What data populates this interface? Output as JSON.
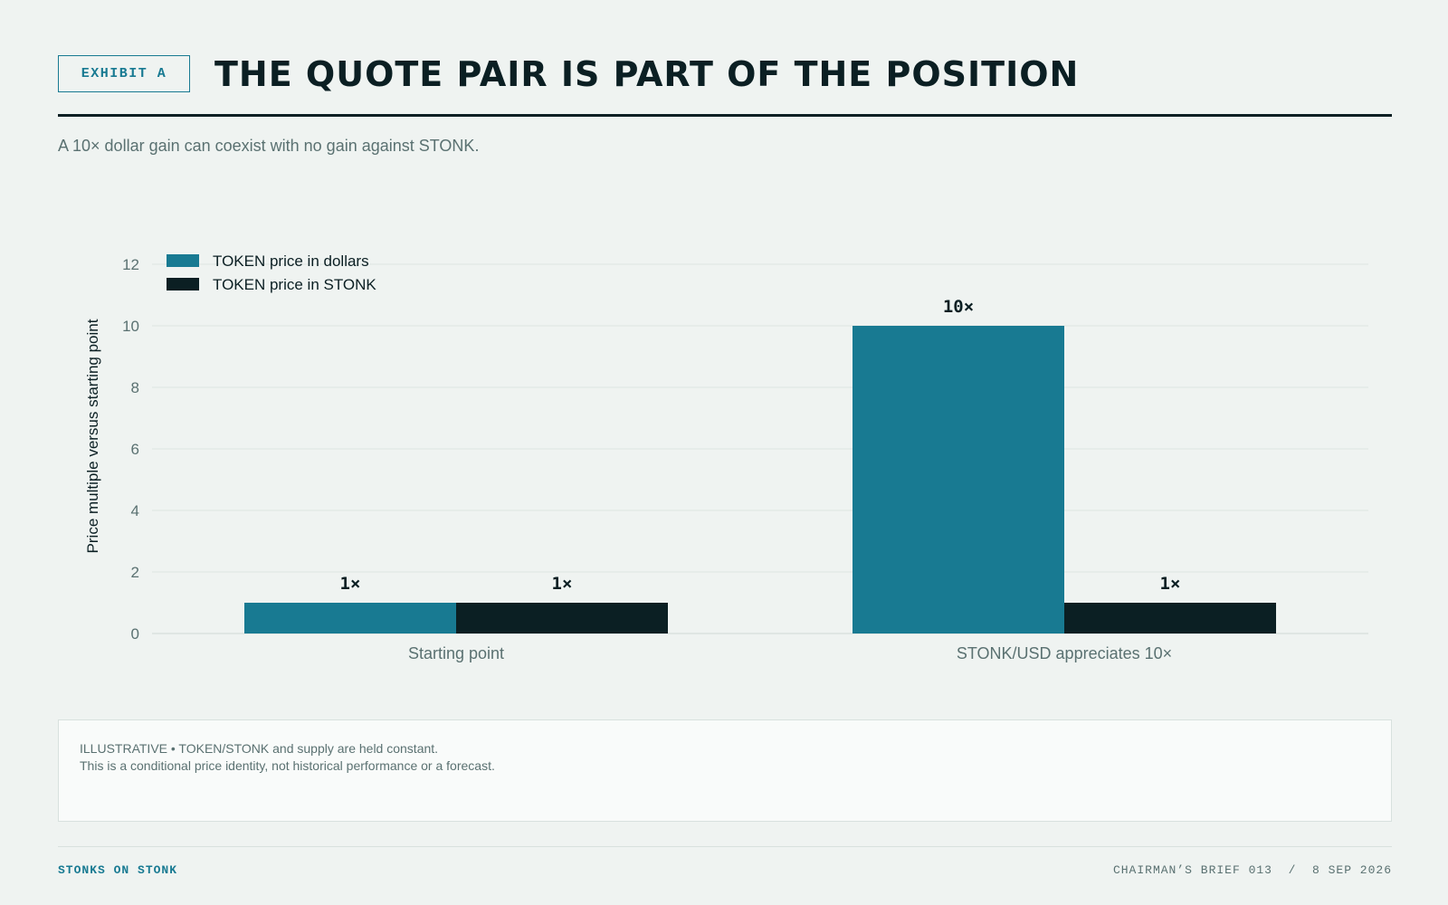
{
  "header": {
    "exhibit_label": "EXHIBIT A",
    "title": "THE QUOTE PAIR IS PART OF THE POSITION",
    "subtitle": "A 10× dollar gain can coexist with no gain against STONK."
  },
  "chart_data": {
    "type": "bar",
    "categories": [
      "Starting point",
      "STONK/USD appreciates 10×"
    ],
    "series": [
      {
        "name": "TOKEN price in dollars",
        "values": [
          1,
          10
        ],
        "labels": [
          "1×",
          "10×"
        ],
        "color": "#187a92"
      },
      {
        "name": "TOKEN price in STONK",
        "values": [
          1,
          1
        ],
        "labels": [
          "1×",
          "1×"
        ],
        "color": "#0b1f23"
      }
    ],
    "ylabel": "Price multiple versus starting point",
    "ylim": [
      0,
      12
    ],
    "yticks": [
      0,
      2,
      4,
      6,
      8,
      10,
      12
    ],
    "grid": true,
    "legend": "top-left"
  },
  "note": {
    "line1": "ILLUSTRATIVE • TOKEN/STONK and supply are held constant.",
    "line2": "This is a conditional price identity, not historical performance or a forecast."
  },
  "footer": {
    "brand": "STONKS ON STONK",
    "meta": "CHAIRMAN’S BRIEF 013  /  8 SEP 2026"
  }
}
